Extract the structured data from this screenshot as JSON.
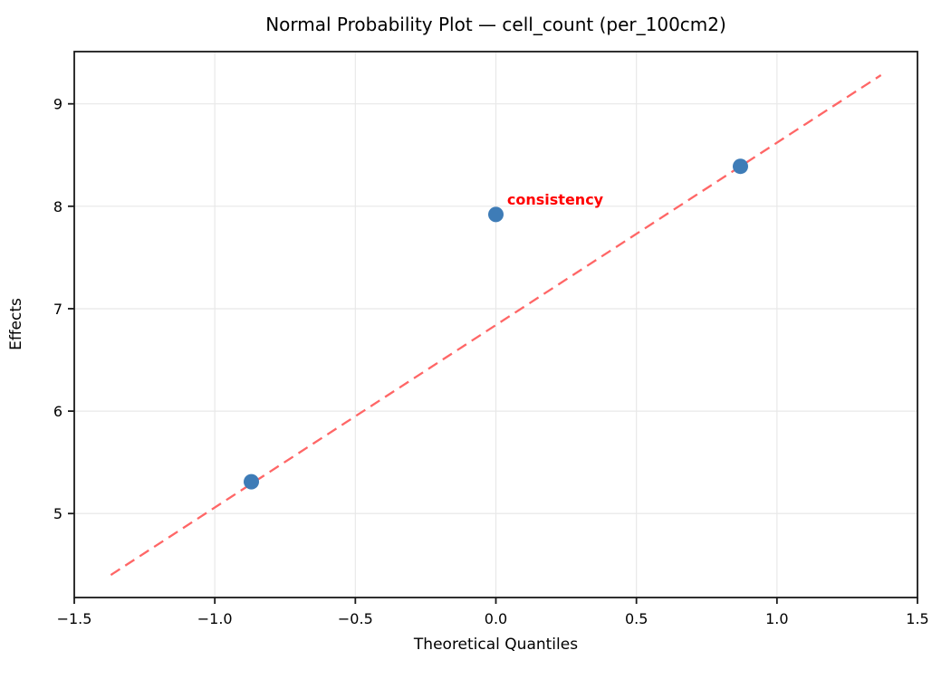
{
  "chart_data": {
    "type": "scatter",
    "title": "Normal Probability Plot — cell_count (per_100cm2)",
    "xlabel": "Theoretical Quantiles",
    "ylabel": "Effects",
    "xlim": [
      -1.5,
      1.5
    ],
    "ylim": [
      4.18,
      9.51
    ],
    "grid": true,
    "legend": false,
    "xticks": [
      {
        "v": -1.5,
        "label": "−1.5"
      },
      {
        "v": -1.0,
        "label": "−1.0"
      },
      {
        "v": -0.5,
        "label": "−0.5"
      },
      {
        "v": 0.0,
        "label": "0.0"
      },
      {
        "v": 0.5,
        "label": "0.5"
      },
      {
        "v": 1.0,
        "label": "1.0"
      },
      {
        "v": 1.5,
        "label": "1.5"
      }
    ],
    "yticks": [
      {
        "v": 5,
        "label": "5"
      },
      {
        "v": 6,
        "label": "6"
      },
      {
        "v": 7,
        "label": "7"
      },
      {
        "v": 8,
        "label": "8"
      },
      {
        "v": 9,
        "label": "9"
      }
    ],
    "points": [
      {
        "x": -0.87,
        "y": 5.31
      },
      {
        "x": 0.0,
        "y": 7.92
      },
      {
        "x": 0.87,
        "y": 8.39
      }
    ],
    "fit_line": {
      "x_start": -1.37,
      "y_start": 4.4,
      "x_end": 1.37,
      "y_end": 9.28,
      "style": "dashed"
    },
    "annotation": {
      "text": "consistency",
      "x": 0.04,
      "y": 8.06,
      "bold": true
    },
    "colors": {
      "point": "#3E7CB7",
      "fit_line": "#FF6666",
      "annotation": "#FF0000",
      "grid": "#E8E8E8",
      "spine": "#1A1A1A",
      "tick_label": "#000000"
    }
  }
}
